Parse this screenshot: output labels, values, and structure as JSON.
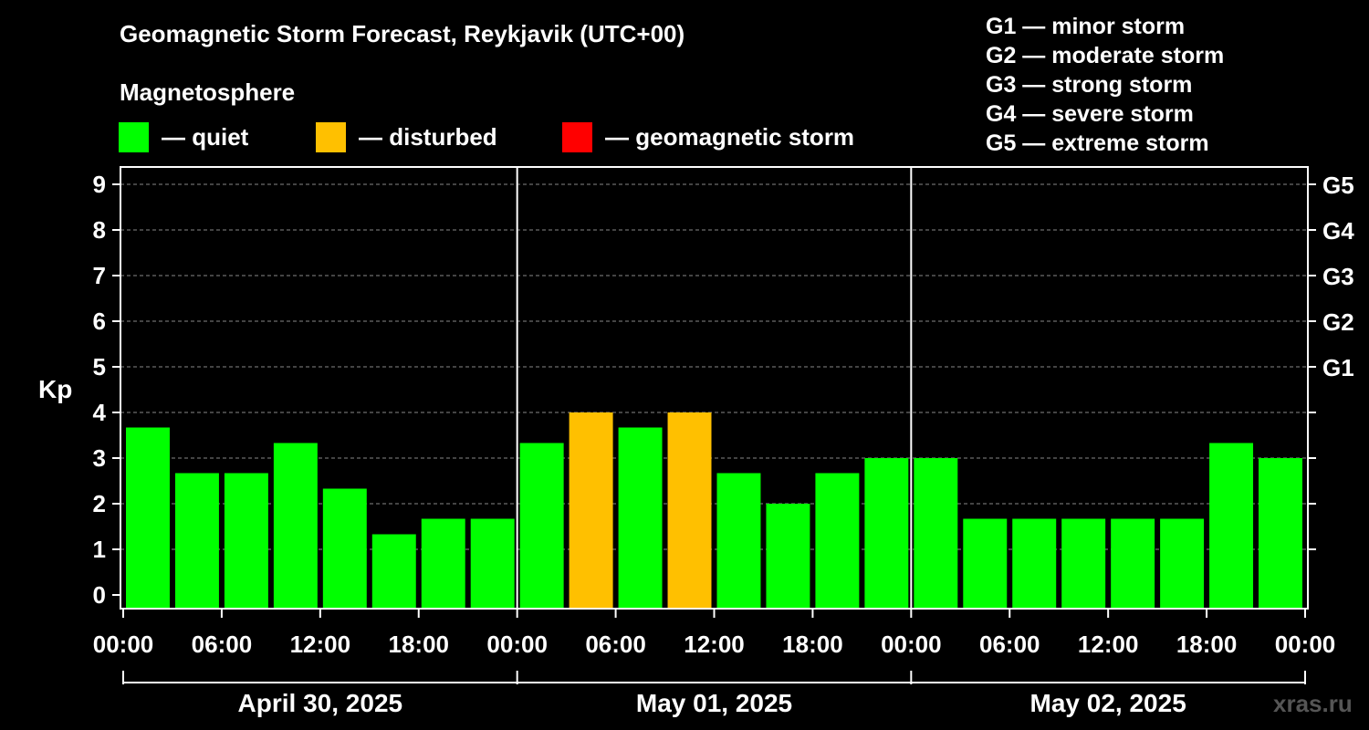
{
  "title": "Geomagnetic Storm Forecast, Reykjavik (UTC+00)",
  "magnetosphere_label": "Magnetosphere",
  "legend": [
    {
      "label": "— quiet",
      "color": "#00ff00"
    },
    {
      "label": "— disturbed",
      "color": "#ffc000"
    },
    {
      "label": "— geomagnetic storm",
      "color": "#ff0000"
    }
  ],
  "storm_levels": [
    "G1 — minor storm",
    "G2 — moderate storm",
    "G3 — strong storm",
    "G4 — severe storm",
    "G5 — extreme storm"
  ],
  "watermark": "xras.ru",
  "chart_data": {
    "type": "bar",
    "ylabel": "Kp",
    "ylim": [
      0,
      9
    ],
    "y_ticks": [
      "0",
      "1",
      "2",
      "3",
      "4",
      "5",
      "6",
      "7",
      "8",
      "9"
    ],
    "right_ticks": [
      {
        "kp": 5,
        "label": "G1"
      },
      {
        "kp": 6,
        "label": "G2"
      },
      {
        "kp": 7,
        "label": "G3"
      },
      {
        "kp": 8,
        "label": "G4"
      },
      {
        "kp": 9,
        "label": "G5"
      }
    ],
    "grid": true,
    "x_tick_labels": [
      "00:00",
      "06:00",
      "12:00",
      "18:00",
      "00:00",
      "06:00",
      "12:00",
      "18:00",
      "00:00",
      "06:00",
      "12:00",
      "18:00",
      "00:00"
    ],
    "days": [
      "April 30, 2025",
      "May 01, 2025",
      "May 02, 2025"
    ],
    "bars_per_day": 8,
    "values": [
      3.67,
      2.67,
      2.67,
      3.33,
      2.33,
      1.33,
      1.67,
      1.67,
      3.33,
      4.0,
      3.67,
      4.0,
      2.67,
      2.0,
      2.67,
      3.0,
      3.0,
      1.67,
      1.67,
      1.67,
      1.67,
      1.67,
      3.33,
      3.0
    ],
    "status": [
      "quiet",
      "quiet",
      "quiet",
      "quiet",
      "quiet",
      "quiet",
      "quiet",
      "quiet",
      "quiet",
      "disturbed",
      "quiet",
      "disturbed",
      "quiet",
      "quiet",
      "quiet",
      "quiet",
      "quiet",
      "quiet",
      "quiet",
      "quiet",
      "quiet",
      "quiet",
      "quiet",
      "quiet"
    ],
    "colors": {
      "quiet": "#00ff00",
      "disturbed": "#ffc000",
      "storm": "#ff0000"
    }
  }
}
